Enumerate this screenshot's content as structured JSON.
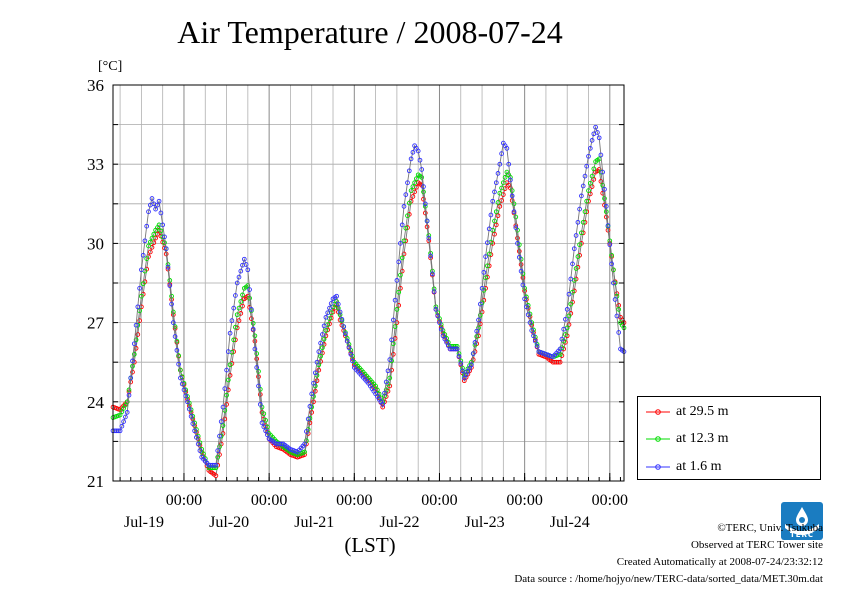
{
  "title": "Air Temperature / 2008-07-24",
  "chart_data": {
    "type": "line",
    "title": "Air Temperature / 2008-07-24",
    "ylabel": "[°C]",
    "xlabel": "(LST)",
    "ylim": [
      21,
      36
    ],
    "yticks": [
      "21",
      "24",
      "27",
      "30",
      "33",
      "36"
    ],
    "xlim": [
      0,
      144
    ],
    "xticks": [
      {
        "time": "00:00",
        "date": "Jul-19",
        "hour": 20
      },
      {
        "time": "00:00",
        "date": "Jul-20",
        "hour": 44
      },
      {
        "time": "00:00",
        "date": "Jul-21",
        "hour": 68
      },
      {
        "time": "00:00",
        "date": "Jul-22",
        "hour": 92
      },
      {
        "time": "00:00",
        "date": "Jul-23",
        "hour": 116
      },
      {
        "time": "00:00",
        "date": "Jul-24",
        "hour": 140
      }
    ],
    "grid": true,
    "legend_position": "right",
    "series": [
      {
        "name": "at 29.5 m",
        "color": "#ff0000",
        "points": [
          [
            0,
            23.8
          ],
          [
            2,
            23.7
          ],
          [
            4,
            24.0
          ],
          [
            6,
            25.5
          ],
          [
            8,
            27.6
          ],
          [
            10,
            29.5
          ],
          [
            12,
            30.2
          ],
          [
            13,
            30.5
          ],
          [
            15,
            29.6
          ],
          [
            17,
            27.3
          ],
          [
            19,
            25.2
          ],
          [
            21,
            24.1
          ],
          [
            23,
            23.1
          ],
          [
            25,
            22.1
          ],
          [
            27,
            21.4
          ],
          [
            29,
            21.2
          ],
          [
            31,
            22.8
          ],
          [
            33,
            25.0
          ],
          [
            35,
            26.8
          ],
          [
            37,
            27.9
          ],
          [
            38,
            28.0
          ],
          [
            40,
            26.3
          ],
          [
            42,
            23.6
          ],
          [
            44,
            22.6
          ],
          [
            46,
            22.3
          ],
          [
            48,
            22.2
          ],
          [
            50,
            22.0
          ],
          [
            52,
            21.9
          ],
          [
            54,
            22.0
          ],
          [
            56,
            23.6
          ],
          [
            58,
            25.2
          ],
          [
            60,
            26.5
          ],
          [
            62,
            27.4
          ],
          [
            63,
            27.7
          ],
          [
            64,
            27.1
          ],
          [
            66,
            26.3
          ],
          [
            68,
            25.4
          ],
          [
            70,
            25.1
          ],
          [
            72,
            24.8
          ],
          [
            74,
            24.5
          ],
          [
            76,
            23.8
          ],
          [
            78,
            24.6
          ],
          [
            80,
            27.0
          ],
          [
            82,
            29.6
          ],
          [
            84,
            31.6
          ],
          [
            86,
            32.3
          ],
          [
            87,
            32.2
          ],
          [
            89,
            30.1
          ],
          [
            91,
            27.5
          ],
          [
            93,
            26.6
          ],
          [
            95,
            26.0
          ],
          [
            97,
            26.0
          ],
          [
            99,
            24.8
          ],
          [
            101,
            25.3
          ],
          [
            103,
            26.5
          ],
          [
            105,
            28.3
          ],
          [
            107,
            30.0
          ],
          [
            109,
            31.4
          ],
          [
            111,
            32.3
          ],
          [
            112,
            32.1
          ],
          [
            114,
            30.2
          ],
          [
            116,
            28.2
          ],
          [
            118,
            26.9
          ],
          [
            120,
            25.8
          ],
          [
            122,
            25.7
          ],
          [
            124,
            25.5
          ],
          [
            126,
            25.5
          ],
          [
            128,
            26.5
          ],
          [
            130,
            28.2
          ],
          [
            132,
            30.0
          ],
          [
            134,
            31.6
          ],
          [
            136,
            32.7
          ],
          [
            137,
            32.8
          ],
          [
            139,
            31.0
          ],
          [
            141,
            29.0
          ],
          [
            143,
            27.2
          ],
          [
            144,
            27.0
          ]
        ]
      },
      {
        "name": "at 12.3 m",
        "color": "#00dd00",
        "points": [
          [
            0,
            23.4
          ],
          [
            2,
            23.5
          ],
          [
            4,
            24.0
          ],
          [
            6,
            25.8
          ],
          [
            8,
            28.0
          ],
          [
            10,
            29.9
          ],
          [
            12,
            30.5
          ],
          [
            13,
            30.7
          ],
          [
            15,
            29.8
          ],
          [
            17,
            27.4
          ],
          [
            19,
            25.2
          ],
          [
            21,
            24.2
          ],
          [
            23,
            23.2
          ],
          [
            25,
            22.2
          ],
          [
            27,
            21.5
          ],
          [
            29,
            21.5
          ],
          [
            31,
            23.1
          ],
          [
            33,
            25.4
          ],
          [
            35,
            27.3
          ],
          [
            37,
            28.3
          ],
          [
            38,
            28.4
          ],
          [
            40,
            26.5
          ],
          [
            42,
            23.8
          ],
          [
            44,
            22.8
          ],
          [
            46,
            22.5
          ],
          [
            48,
            22.3
          ],
          [
            50,
            22.1
          ],
          [
            52,
            22.0
          ],
          [
            54,
            22.1
          ],
          [
            56,
            23.8
          ],
          [
            58,
            25.4
          ],
          [
            60,
            26.7
          ],
          [
            62,
            27.6
          ],
          [
            63,
            27.8
          ],
          [
            64,
            27.3
          ],
          [
            66,
            26.4
          ],
          [
            68,
            25.5
          ],
          [
            70,
            25.2
          ],
          [
            72,
            24.9
          ],
          [
            74,
            24.6
          ],
          [
            76,
            24.0
          ],
          [
            78,
            24.9
          ],
          [
            80,
            27.5
          ],
          [
            82,
            30.1
          ],
          [
            84,
            32.0
          ],
          [
            86,
            32.6
          ],
          [
            87,
            32.5
          ],
          [
            89,
            30.3
          ],
          [
            91,
            27.6
          ],
          [
            93,
            26.7
          ],
          [
            95,
            26.1
          ],
          [
            97,
            26.1
          ],
          [
            99,
            25.0
          ],
          [
            101,
            25.5
          ],
          [
            103,
            26.8
          ],
          [
            105,
            28.7
          ],
          [
            107,
            30.5
          ],
          [
            109,
            31.9
          ],
          [
            111,
            32.7
          ],
          [
            112,
            32.5
          ],
          [
            114,
            30.5
          ],
          [
            116,
            28.3
          ],
          [
            118,
            27.0
          ],
          [
            120,
            25.9
          ],
          [
            122,
            25.8
          ],
          [
            124,
            25.7
          ],
          [
            126,
            25.8
          ],
          [
            128,
            26.8
          ],
          [
            130,
            28.6
          ],
          [
            132,
            30.4
          ],
          [
            134,
            32.0
          ],
          [
            136,
            33.1
          ],
          [
            137,
            33.2
          ],
          [
            139,
            31.2
          ],
          [
            141,
            29.0
          ],
          [
            143,
            27.0
          ],
          [
            144,
            26.8
          ]
        ]
      },
      {
        "name": "at 1.6 m",
        "color": "#3333ff",
        "points": [
          [
            0,
            22.9
          ],
          [
            2,
            22.9
          ],
          [
            4,
            23.6
          ],
          [
            6,
            26.2
          ],
          [
            8,
            29.0
          ],
          [
            10,
            31.2
          ],
          [
            11,
            31.7
          ],
          [
            12,
            31.3
          ],
          [
            13,
            31.6
          ],
          [
            15,
            29.8
          ],
          [
            17,
            27.0
          ],
          [
            19,
            24.9
          ],
          [
            21,
            24.0
          ],
          [
            23,
            22.9
          ],
          [
            25,
            21.9
          ],
          [
            27,
            21.6
          ],
          [
            29,
            21.6
          ],
          [
            31,
            23.8
          ],
          [
            33,
            26.6
          ],
          [
            35,
            28.5
          ],
          [
            37,
            29.4
          ],
          [
            38,
            29.0
          ],
          [
            40,
            26.0
          ],
          [
            42,
            23.2
          ],
          [
            44,
            22.6
          ],
          [
            46,
            22.4
          ],
          [
            48,
            22.4
          ],
          [
            50,
            22.2
          ],
          [
            52,
            22.1
          ],
          [
            54,
            22.4
          ],
          [
            56,
            24.3
          ],
          [
            58,
            25.9
          ],
          [
            60,
            27.2
          ],
          [
            62,
            27.9
          ],
          [
            63,
            28.0
          ],
          [
            64,
            27.4
          ],
          [
            66,
            26.3
          ],
          [
            68,
            25.3
          ],
          [
            70,
            25.0
          ],
          [
            72,
            24.7
          ],
          [
            74,
            24.3
          ],
          [
            76,
            23.9
          ],
          [
            78,
            25.6
          ],
          [
            80,
            28.6
          ],
          [
            82,
            31.4
          ],
          [
            84,
            33.2
          ],
          [
            85,
            33.7
          ],
          [
            86,
            33.5
          ],
          [
            87,
            32.8
          ],
          [
            89,
            30.2
          ],
          [
            91,
            27.5
          ],
          [
            93,
            26.5
          ],
          [
            95,
            26.0
          ],
          [
            97,
            26.0
          ],
          [
            99,
            24.9
          ],
          [
            101,
            25.4
          ],
          [
            103,
            27.1
          ],
          [
            105,
            29.5
          ],
          [
            107,
            31.6
          ],
          [
            109,
            33.0
          ],
          [
            110,
            33.8
          ],
          [
            111,
            33.6
          ],
          [
            112,
            32.4
          ],
          [
            114,
            30.0
          ],
          [
            116,
            27.9
          ],
          [
            118,
            26.7
          ],
          [
            120,
            25.9
          ],
          [
            122,
            25.8
          ],
          [
            124,
            25.7
          ],
          [
            126,
            26.0
          ],
          [
            128,
            27.5
          ],
          [
            130,
            29.8
          ],
          [
            132,
            31.8
          ],
          [
            134,
            33.3
          ],
          [
            135,
            33.9
          ],
          [
            136,
            34.4
          ],
          [
            137,
            34.0
          ],
          [
            139,
            31.4
          ],
          [
            141,
            28.5
          ],
          [
            143,
            26.0
          ],
          [
            144,
            25.9
          ]
        ]
      }
    ]
  },
  "credits": {
    "copyright": "©TERC, Univ. Tsukuba",
    "observed": "Observed at TERC Tower site",
    "created": "Created Automatically at 2008-07-24/23:32:12",
    "source": "Data source : /home/hojyo/new/TERC-data/sorted_data/MET.30m.dat"
  },
  "logo": {
    "text": "TERC",
    "color": "#1a7cc1"
  }
}
